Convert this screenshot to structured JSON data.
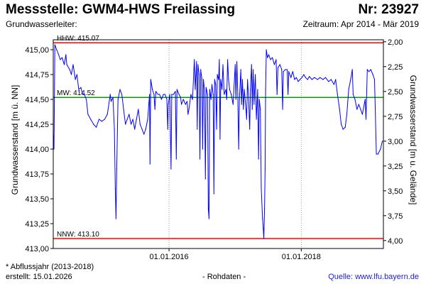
{
  "header": {
    "title": "Messstelle: GWM4-HWS Freilassing",
    "station_number": "Nr: 23927",
    "aquifer_label": "Grundwasserleiter:",
    "period": "Zeitraum: Apr 2014 - Mär 2019"
  },
  "footer": {
    "note": "* Abflussjahr (2013-2018)",
    "created": "erstellt:  15.01.2026",
    "raw_data": "- Rohdaten -",
    "source": "Quelle:  www.lfu.bayern.de"
  },
  "colors": {
    "series": "#0000ff",
    "hhw_line": "#ff0000",
    "nnw_line": "#ff0000",
    "mw_line": "#00a000",
    "frame": "#000000"
  },
  "chart_data": {
    "type": "line",
    "ylabel_left": "Grundwasserstand [m ü. NN]",
    "ylabel_right": "Grundwasserstand [m u. Gelände]",
    "ylim": [
      413.0,
      415.1
    ],
    "ylim_right": [
      4.08,
      1.98
    ],
    "xlim": [
      "2014-04-01",
      "2019-03-31"
    ],
    "y_ticks_left": [
      "415,00",
      "414,75",
      "414,50",
      "414,25",
      "414,00",
      "413,75",
      "413,50",
      "413,25",
      "413,00"
    ],
    "y_ticks_right": [
      "2,00",
      "2,25",
      "2,50",
      "2,75",
      "3,00",
      "3,25",
      "3,50",
      "3,75",
      "4,00"
    ],
    "x_ticks": [
      {
        "date": "2016-01-01",
        "label": "01.01.2016"
      },
      {
        "date": "2018-01-01",
        "label": "01.01.2018"
      }
    ],
    "reference_lines": [
      {
        "name": "HHW",
        "label": "HHW: 415.07",
        "value": 415.07,
        "color": "#ff0000"
      },
      {
        "name": "MW",
        "label": "MW: 414.52",
        "value": 414.52,
        "color": "#00a000"
      },
      {
        "name": "NNW",
        "label": "NNW: 413.10",
        "value": 413.1,
        "color": "#ff0000"
      }
    ],
    "series": [
      {
        "points": [
          [
            "2014-04-01",
            414.15
          ],
          [
            "2014-04-05",
            414.0
          ],
          [
            "2014-04-10",
            415.05
          ],
          [
            "2014-04-20",
            415.0
          ],
          [
            "2014-05-01",
            414.95
          ],
          [
            "2014-05-10",
            414.9
          ],
          [
            "2014-05-20",
            414.92
          ],
          [
            "2014-06-01",
            414.85
          ],
          [
            "2014-06-10",
            414.95
          ],
          [
            "2014-06-15",
            414.85
          ],
          [
            "2014-07-01",
            414.8
          ],
          [
            "2014-07-10",
            414.75
          ],
          [
            "2014-07-20",
            414.85
          ],
          [
            "2014-08-01",
            414.7
          ],
          [
            "2014-08-10",
            414.75
          ],
          [
            "2014-08-20",
            414.6
          ],
          [
            "2014-09-01",
            414.62
          ],
          [
            "2014-09-10",
            414.55
          ],
          [
            "2014-09-20",
            414.55
          ],
          [
            "2014-10-01",
            414.5
          ],
          [
            "2014-10-10",
            414.35
          ],
          [
            "2014-10-25",
            414.3
          ],
          [
            "2014-11-10",
            414.25
          ],
          [
            "2014-11-25",
            414.22
          ],
          [
            "2014-12-10",
            414.3
          ],
          [
            "2014-12-25",
            414.28
          ],
          [
            "2015-01-10",
            414.3
          ],
          [
            "2015-01-25",
            414.35
          ],
          [
            "2015-02-10",
            414.55
          ],
          [
            "2015-02-15",
            414.48
          ],
          [
            "2015-02-25",
            414.52
          ],
          [
            "2015-03-05",
            414.2
          ],
          [
            "2015-03-10",
            413.6
          ],
          [
            "2015-03-14",
            413.3
          ],
          [
            "2015-03-18",
            413.8
          ],
          [
            "2015-03-25",
            414.5
          ],
          [
            "2015-04-05",
            414.6
          ],
          [
            "2015-04-15",
            414.55
          ],
          [
            "2015-04-25",
            414.4
          ],
          [
            "2015-05-05",
            414.25
          ],
          [
            "2015-05-15",
            414.3
          ],
          [
            "2015-05-25",
            414.35
          ],
          [
            "2015-06-05",
            414.25
          ],
          [
            "2015-06-15",
            414.3
          ],
          [
            "2015-06-25",
            414.2
          ],
          [
            "2015-07-05",
            414.3
          ],
          [
            "2015-07-15",
            414.4
          ],
          [
            "2015-07-25",
            414.25
          ],
          [
            "2015-08-05",
            414.2
          ],
          [
            "2015-08-15",
            414.15
          ],
          [
            "2015-08-25",
            414.2
          ],
          [
            "2015-09-05",
            414.3
          ],
          [
            "2015-09-15",
            414.55
          ],
          [
            "2015-09-18",
            413.85
          ],
          [
            "2015-09-22",
            414.7
          ],
          [
            "2015-10-01",
            414.6
          ],
          [
            "2015-10-10",
            414.55
          ],
          [
            "2015-10-15",
            414.4
          ],
          [
            "2015-10-20",
            414.58
          ],
          [
            "2015-11-01",
            414.55
          ],
          [
            "2015-11-10",
            414.55
          ],
          [
            "2015-11-20",
            414.5
          ],
          [
            "2015-12-01",
            414.55
          ],
          [
            "2015-12-10",
            414.55
          ],
          [
            "2015-12-20",
            414.5
          ],
          [
            "2015-12-25",
            414.2
          ],
          [
            "2015-12-28",
            414.45
          ],
          [
            "2016-01-05",
            414.55
          ],
          [
            "2016-01-12",
            413.8
          ],
          [
            "2016-01-16",
            414.55
          ],
          [
            "2016-01-25",
            414.55
          ],
          [
            "2016-02-05",
            414.58
          ],
          [
            "2016-02-10",
            413.9
          ],
          [
            "2016-02-14",
            414.6
          ],
          [
            "2016-02-25",
            414.55
          ],
          [
            "2016-03-05",
            414.52
          ],
          [
            "2016-03-10",
            414.45
          ],
          [
            "2016-03-20",
            414.5
          ],
          [
            "2016-04-01",
            414.45
          ],
          [
            "2016-04-10",
            414.48
          ],
          [
            "2016-04-15",
            414.35
          ],
          [
            "2016-04-20",
            414.4
          ],
          [
            "2016-05-01",
            414.55
          ],
          [
            "2016-05-10",
            414.5
          ],
          [
            "2016-05-20",
            414.9
          ],
          [
            "2016-05-25",
            414.6
          ],
          [
            "2016-06-01",
            414.88
          ],
          [
            "2016-06-05",
            414.2
          ],
          [
            "2016-06-09",
            414.85
          ],
          [
            "2016-06-15",
            414.75
          ],
          [
            "2016-06-20",
            413.9
          ],
          [
            "2016-06-24",
            414.8
          ],
          [
            "2016-07-01",
            414.7
          ],
          [
            "2016-07-05",
            414.0
          ],
          [
            "2016-07-09",
            414.7
          ],
          [
            "2016-07-15",
            414.6
          ],
          [
            "2016-07-20",
            413.7
          ],
          [
            "2016-07-24",
            414.62
          ],
          [
            "2016-08-01",
            414.55
          ],
          [
            "2016-08-05",
            413.4
          ],
          [
            "2016-08-09",
            413.3
          ],
          [
            "2016-08-13",
            414.6
          ],
          [
            "2016-08-20",
            414.5
          ],
          [
            "2016-08-25",
            414.65
          ],
          [
            "2016-09-01",
            414.55
          ],
          [
            "2016-09-05",
            413.55
          ],
          [
            "2016-09-09",
            414.7
          ],
          [
            "2016-09-15",
            414.65
          ],
          [
            "2016-09-20",
            414.2
          ],
          [
            "2016-09-24",
            414.75
          ],
          [
            "2016-10-01",
            414.7
          ],
          [
            "2016-10-05",
            414.9
          ],
          [
            "2016-10-09",
            414.1
          ],
          [
            "2016-10-13",
            414.7
          ],
          [
            "2016-10-20",
            414.6
          ],
          [
            "2016-10-25",
            414.85
          ],
          [
            "2016-11-01",
            414.55
          ],
          [
            "2016-11-10",
            414.6
          ],
          [
            "2016-11-15",
            414.5
          ],
          [
            "2016-11-20",
            414.9
          ],
          [
            "2016-11-25",
            414.7
          ],
          [
            "2016-12-01",
            414.6
          ],
          [
            "2016-12-10",
            414.55
          ],
          [
            "2016-12-20",
            414.45
          ],
          [
            "2017-01-01",
            414.85
          ],
          [
            "2017-01-05",
            414.5
          ],
          [
            "2017-01-10",
            414.88
          ],
          [
            "2017-01-15",
            414.55
          ],
          [
            "2017-01-20",
            414.0
          ],
          [
            "2017-01-24",
            414.5
          ],
          [
            "2017-02-01",
            414.8
          ],
          [
            "2017-02-05",
            414.45
          ],
          [
            "2017-02-10",
            414.7
          ],
          [
            "2017-02-15",
            414.4
          ],
          [
            "2017-02-20",
            414.6
          ],
          [
            "2017-03-01",
            414.4
          ],
          [
            "2017-03-05",
            414.3
          ],
          [
            "2017-03-10",
            414.7
          ],
          [
            "2017-03-15",
            414.55
          ],
          [
            "2017-03-22",
            414.2
          ],
          [
            "2017-03-26",
            414.6
          ],
          [
            "2017-04-01",
            414.85
          ],
          [
            "2017-04-05",
            414.4
          ],
          [
            "2017-04-10",
            414.8
          ],
          [
            "2017-04-15",
            414.45
          ],
          [
            "2017-04-22",
            414.75
          ],
          [
            "2017-04-28",
            414.3
          ],
          [
            "2017-05-05",
            414.6
          ],
          [
            "2017-05-10",
            413.9
          ],
          [
            "2017-05-14",
            414.5
          ],
          [
            "2017-05-20",
            414.4
          ],
          [
            "2017-05-25",
            413.6
          ],
          [
            "2017-06-01",
            413.3
          ],
          [
            "2017-06-05",
            413.2
          ],
          [
            "2017-06-08",
            413.1
          ],
          [
            "2017-06-12",
            413.4
          ],
          [
            "2017-06-15",
            413.8
          ],
          [
            "2017-06-18",
            414.6
          ],
          [
            "2017-06-22",
            415.0
          ],
          [
            "2017-06-28",
            414.92
          ],
          [
            "2017-07-05",
            414.95
          ],
          [
            "2017-07-15",
            414.9
          ],
          [
            "2017-07-25",
            414.92
          ],
          [
            "2017-08-05",
            414.85
          ],
          [
            "2017-08-15",
            414.9
          ],
          [
            "2017-08-20",
            414.55
          ],
          [
            "2017-08-25",
            414.82
          ],
          [
            "2017-09-05",
            414.85
          ],
          [
            "2017-09-15",
            414.8
          ],
          [
            "2017-09-20",
            414.4
          ],
          [
            "2017-09-24",
            414.78
          ],
          [
            "2017-10-05",
            414.8
          ],
          [
            "2017-10-15",
            414.8
          ],
          [
            "2017-10-20",
            414.55
          ],
          [
            "2017-10-24",
            414.78
          ],
          [
            "2017-11-05",
            414.72
          ],
          [
            "2017-11-15",
            414.78
          ],
          [
            "2017-11-25",
            414.7
          ],
          [
            "2017-12-05",
            414.72
          ],
          [
            "2017-12-15",
            414.68
          ],
          [
            "2017-12-25",
            414.7
          ],
          [
            "2018-01-05",
            414.72
          ],
          [
            "2018-01-15",
            414.75
          ],
          [
            "2018-01-25",
            414.72
          ],
          [
            "2018-02-05",
            414.7
          ],
          [
            "2018-02-15",
            414.73
          ],
          [
            "2018-03-01",
            414.7
          ],
          [
            "2018-03-15",
            414.72
          ],
          [
            "2018-04-01",
            414.7
          ],
          [
            "2018-04-15",
            414.72
          ],
          [
            "2018-05-01",
            414.7
          ],
          [
            "2018-05-15",
            414.72
          ],
          [
            "2018-06-01",
            414.68
          ],
          [
            "2018-06-15",
            414.7
          ],
          [
            "2018-07-01",
            414.65
          ],
          [
            "2018-07-10",
            414.7
          ],
          [
            "2018-07-20",
            414.55
          ],
          [
            "2018-08-01",
            414.4
          ],
          [
            "2018-08-10",
            414.25
          ],
          [
            "2018-08-20",
            414.2
          ],
          [
            "2018-09-01",
            414.22
          ],
          [
            "2018-09-10",
            414.35
          ],
          [
            "2018-09-20",
            414.6
          ],
          [
            "2018-10-01",
            414.7
          ],
          [
            "2018-10-10",
            414.8
          ],
          [
            "2018-10-15",
            414.55
          ],
          [
            "2018-10-25",
            414.5
          ],
          [
            "2018-11-05",
            414.4
          ],
          [
            "2018-11-15",
            414.45
          ],
          [
            "2018-11-25",
            414.4
          ],
          [
            "2018-12-05",
            414.35
          ],
          [
            "2018-12-15",
            414.45
          ],
          [
            "2018-12-20",
            414.5
          ],
          [
            "2018-12-25",
            414.3
          ],
          [
            "2019-01-01",
            414.8
          ],
          [
            "2019-01-10",
            414.78
          ],
          [
            "2019-01-20",
            414.8
          ],
          [
            "2019-02-01",
            414.75
          ],
          [
            "2019-02-10",
            414.7
          ],
          [
            "2019-02-20",
            413.95
          ],
          [
            "2019-03-01",
            413.95
          ],
          [
            "2019-03-15",
            414.0
          ],
          [
            "2019-03-25",
            414.08
          ]
        ]
      }
    ]
  }
}
